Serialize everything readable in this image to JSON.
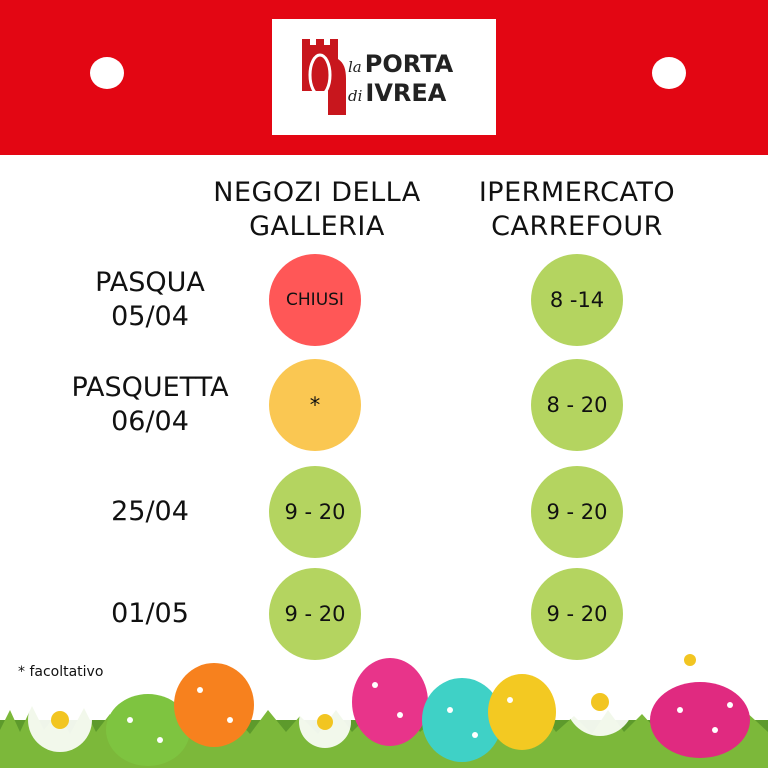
{
  "logo": {
    "line1_script": "la",
    "line1": "PORTA",
    "line2_script": "di",
    "line2": "IVREA"
  },
  "columns": [
    "NEGOZI DELLA GALLERIA",
    "IPERMERCATO CARREFOUR"
  ],
  "column_lines": [
    [
      "NEGOZI DELLA",
      "GALLERIA"
    ],
    [
      "IPERMERCATO",
      "CARREFOUR"
    ]
  ],
  "rows": [
    {
      "label": [
        "PASQUA",
        "05/04"
      ],
      "galleria": "CHIUSI",
      "galleria_status": "closed",
      "carrefour": "8 -14"
    },
    {
      "label": [
        "PASQUETTA",
        "06/04"
      ],
      "galleria": "*",
      "galleria_status": "optional",
      "carrefour": "8 - 20"
    },
    {
      "label": [
        "25/04",
        ""
      ],
      "galleria": "9 - 20",
      "galleria_status": "open",
      "carrefour": "9 - 20"
    },
    {
      "label": [
        "01/05",
        ""
      ],
      "galleria": "9 - 20",
      "galleria_status": "open",
      "carrefour": "9 - 20"
    }
  ],
  "footnote": "* facoltativo",
  "colors": {
    "brand_red": "#e30613",
    "closed": "#ff5757",
    "optional": "#fac752",
    "open": "#b4d460"
  }
}
